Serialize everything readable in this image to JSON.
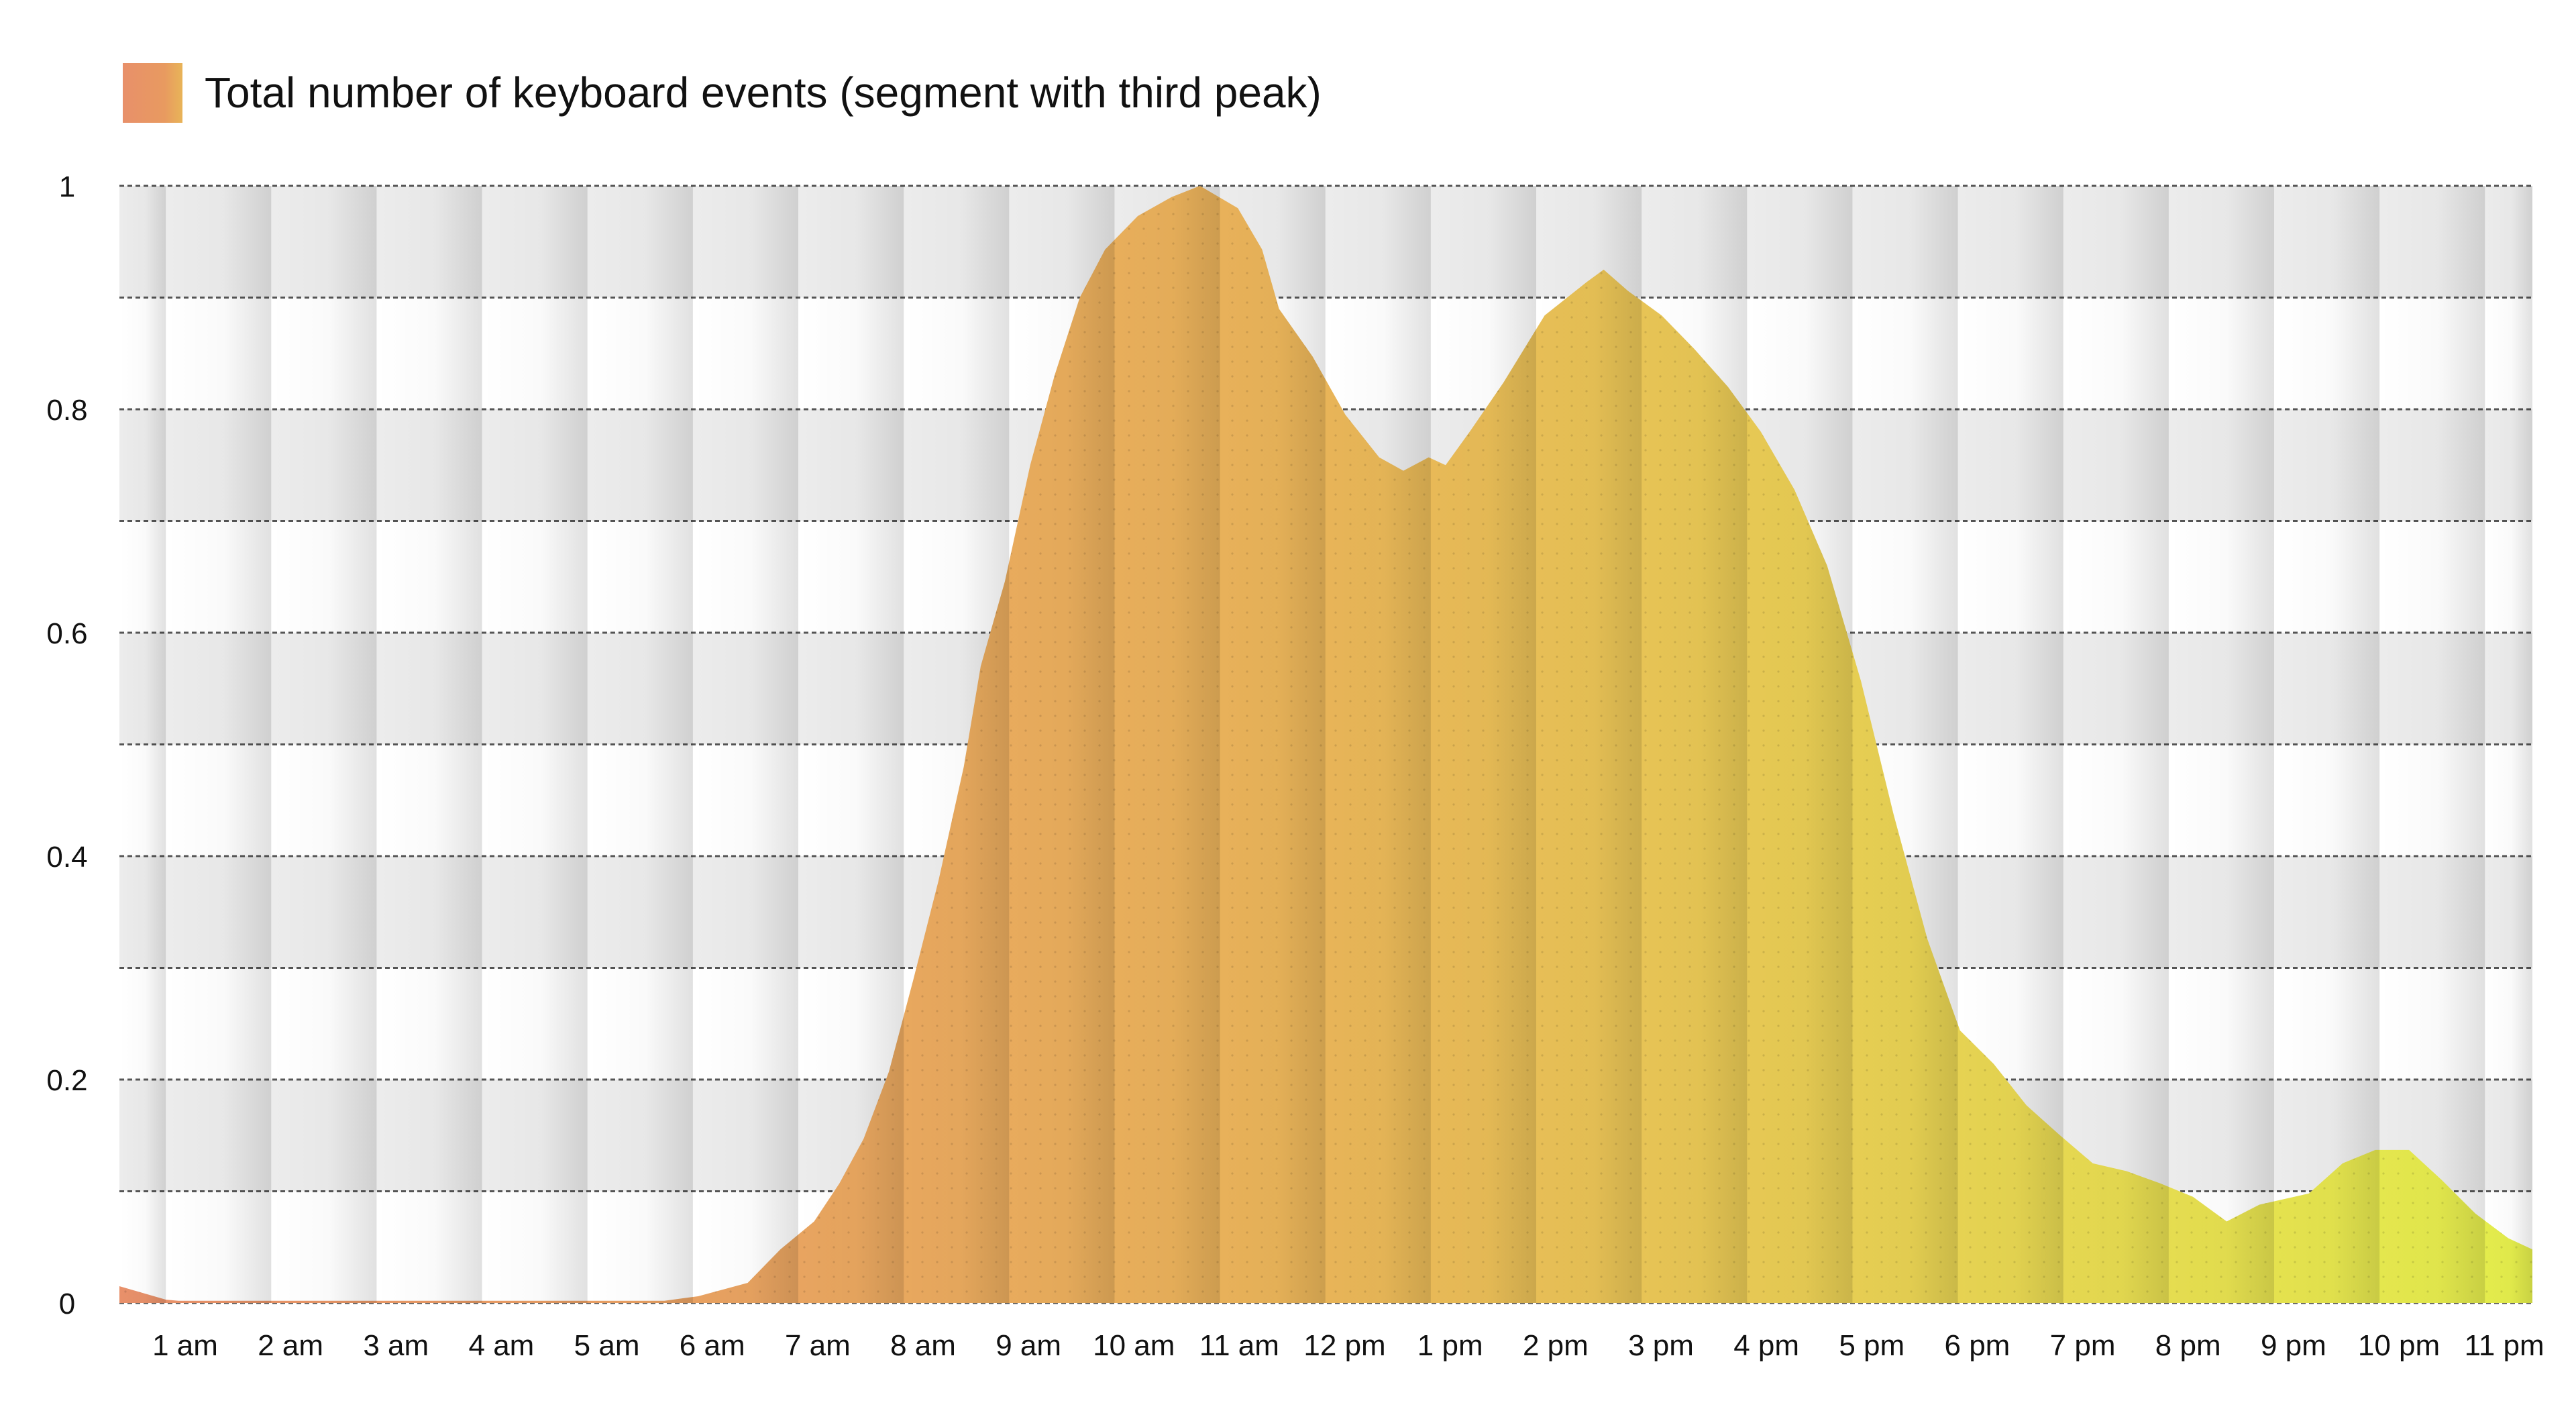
{
  "chart_data": {
    "type": "area",
    "title": "",
    "legend": {
      "label": "Total number of keyboard events (segment with third peak)",
      "placement": "top-left"
    },
    "xlabel": "",
    "ylabel": "",
    "xlim": [
      0.44,
      23.33
    ],
    "ylim": [
      0,
      1
    ],
    "grid": true,
    "yticks": [
      {
        "value": 0,
        "label": "0"
      },
      {
        "value": 0.2,
        "label": "0.2"
      },
      {
        "value": 0.4,
        "label": "0.4"
      },
      {
        "value": 0.6,
        "label": "0.6"
      },
      {
        "value": 0.8,
        "label": "0.8"
      },
      {
        "value": 1,
        "label": "1"
      }
    ],
    "xticks": [
      {
        "value": 1,
        "label": "1 am"
      },
      {
        "value": 2,
        "label": "2 am"
      },
      {
        "value": 3,
        "label": "3 am"
      },
      {
        "value": 4,
        "label": "4 am"
      },
      {
        "value": 5,
        "label": "5 am"
      },
      {
        "value": 6,
        "label": "6 am"
      },
      {
        "value": 7,
        "label": "7 am"
      },
      {
        "value": 8,
        "label": "8 am"
      },
      {
        "value": 9,
        "label": "9 am"
      },
      {
        "value": 10,
        "label": "10 am"
      },
      {
        "value": 11,
        "label": "11 am"
      },
      {
        "value": 12,
        "label": "12 pm"
      },
      {
        "value": 13,
        "label": "1 pm"
      },
      {
        "value": 14,
        "label": "2 pm"
      },
      {
        "value": 15,
        "label": "3 pm"
      },
      {
        "value": 16,
        "label": "4 pm"
      },
      {
        "value": 17,
        "label": "5 pm"
      },
      {
        "value": 18,
        "label": "6 pm"
      },
      {
        "value": 19,
        "label": "7 pm"
      },
      {
        "value": 20,
        "label": "8 pm"
      },
      {
        "value": 21,
        "label": "9 pm"
      },
      {
        "value": 22,
        "label": "10 pm"
      },
      {
        "value": 23,
        "label": "11 pm"
      }
    ],
    "series": [
      {
        "name": "Total number of keyboard events (segment with third peak)",
        "x": [
          0.44,
          0.88,
          1.0,
          5.61,
          5.93,
          6.4,
          6.71,
          7.03,
          7.27,
          7.5,
          7.74,
          7.97,
          8.21,
          8.45,
          8.61,
          8.84,
          9.08,
          9.31,
          9.55,
          9.79,
          10.1,
          10.42,
          10.69,
          11.05,
          11.28,
          11.44,
          11.76,
          12.07,
          12.39,
          12.62,
          12.86,
          13.02,
          13.25,
          13.57,
          13.96,
          14.36,
          14.52,
          14.75,
          15.07,
          15.38,
          15.7,
          16.01,
          16.33,
          16.64,
          16.96,
          17.27,
          17.59,
          17.9,
          18.22,
          18.53,
          18.85,
          19.16,
          19.48,
          19.8,
          20.11,
          20.43,
          20.74,
          21.21,
          21.53,
          21.84,
          22.16,
          22.47,
          22.79,
          23.1,
          23.33
        ],
        "y": [
          0.015,
          0.003,
          0.002,
          0.002,
          0.006,
          0.018,
          0.048,
          0.073,
          0.107,
          0.147,
          0.207,
          0.289,
          0.378,
          0.48,
          0.57,
          0.646,
          0.75,
          0.83,
          0.9,
          0.943,
          0.973,
          0.99,
          1.0,
          0.98,
          0.943,
          0.89,
          0.847,
          0.795,
          0.757,
          0.745,
          0.757,
          0.75,
          0.78,
          0.824,
          0.884,
          0.914,
          0.925,
          0.906,
          0.884,
          0.854,
          0.82,
          0.78,
          0.728,
          0.66,
          0.557,
          0.4375,
          0.326,
          0.244,
          0.214,
          0.177,
          0.15,
          0.125,
          0.118,
          0.107,
          0.095,
          0.073,
          0.088,
          0.098,
          0.125,
          0.137,
          0.137,
          0.11,
          0.08,
          0.058,
          0.048
        ]
      }
    ],
    "colors": {
      "start": "#e8906a",
      "mid": "#e8b458",
      "end": "#e4ee4c",
      "grid": "#555555",
      "row_shade": "#ececec"
    }
  }
}
